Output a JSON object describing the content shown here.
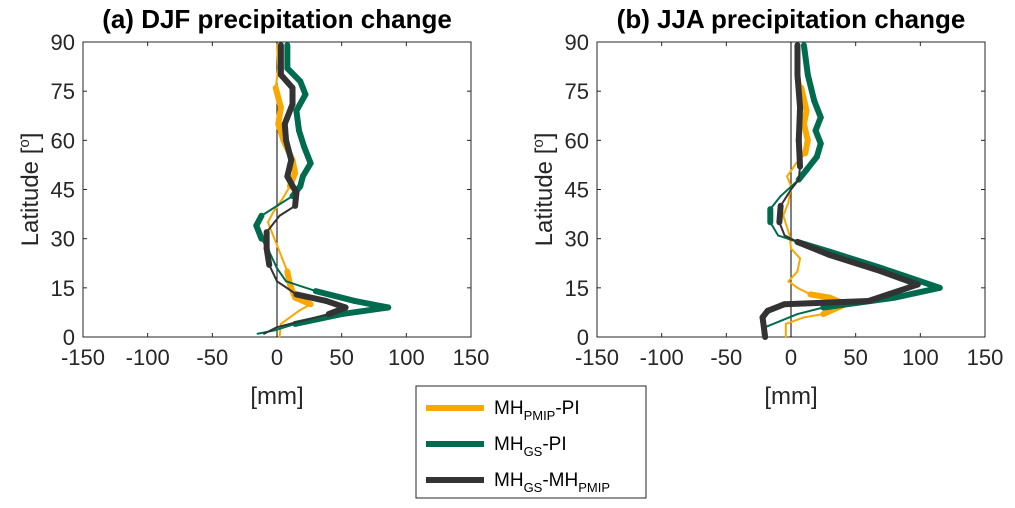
{
  "chart_data": [
    {
      "type": "line",
      "panel": "a",
      "title": "(a) DJF precipitation change",
      "xlabel": "[mm]",
      "ylabel": "Latitude [°]",
      "xlim": [
        -150,
        150
      ],
      "ylim": [
        0,
        90
      ],
      "xticks": [
        -150,
        -100,
        -50,
        0,
        50,
        100,
        150
      ],
      "yticks": [
        0,
        15,
        30,
        45,
        60,
        75,
        90
      ],
      "grid": false,
      "zero_line": true,
      "series": [
        {
          "name": "MH_PMIP-PI",
          "color": "#F8A800",
          "points": [
            [
              0,
              89
            ],
            [
              1,
              82
            ],
            [
              -1,
              76
            ],
            [
              3,
              70
            ],
            [
              1,
              65
            ],
            [
              5,
              60
            ],
            [
              12,
              54
            ],
            [
              14,
              50
            ],
            [
              10,
              46
            ],
            [
              4,
              42
            ],
            [
              -3,
              38
            ],
            [
              -7,
              35
            ],
            [
              -4,
              32
            ],
            [
              0,
              28
            ],
            [
              4,
              24
            ],
            [
              8,
              20
            ],
            [
              10,
              16
            ],
            [
              14,
              12
            ],
            [
              26,
              10
            ],
            [
              17,
              8
            ],
            [
              3,
              4
            ],
            [
              2,
              0
            ]
          ],
          "emphasized": [
            [
              0,
              0,
              1,
              1,
              1,
              1,
              1,
              1,
              1,
              0,
              0,
              0,
              0,
              0,
              0,
              1,
              1,
              1,
              1,
              0,
              0,
              0
            ]
          ]
        },
        {
          "name": "MH_GS-PI",
          "color": "#006B4E",
          "points": [
            [
              8,
              89
            ],
            [
              8,
              82
            ],
            [
              18,
              78
            ],
            [
              22,
              74
            ],
            [
              15,
              69
            ],
            [
              17,
              63
            ],
            [
              21,
              58
            ],
            [
              26,
              53
            ],
            [
              20,
              49
            ],
            [
              18,
              46
            ],
            [
              12,
              43
            ],
            [
              0,
              40
            ],
            [
              -12,
              37
            ],
            [
              -16,
              34
            ],
            [
              -12,
              30
            ],
            [
              -6,
              26
            ],
            [
              0,
              21
            ],
            [
              7,
              17
            ],
            [
              30,
              14
            ],
            [
              60,
              11
            ],
            [
              86,
              9
            ],
            [
              50,
              7
            ],
            [
              14,
              4
            ],
            [
              -2,
              2
            ],
            [
              -15,
              1
            ]
          ],
          "emphasized": [
            [
              1,
              1,
              1,
              1,
              1,
              1,
              1,
              1,
              1,
              1,
              1,
              0,
              1,
              1,
              1,
              0,
              0,
              0,
              1,
              1,
              1,
              1,
              1,
              0,
              1
            ]
          ]
        },
        {
          "name": "MH_GS-MH_PMIP",
          "color": "#333333",
          "points": [
            [
              3,
              89
            ],
            [
              3,
              80
            ],
            [
              12,
              76
            ],
            [
              12,
              71
            ],
            [
              6,
              65
            ],
            [
              7,
              60
            ],
            [
              11,
              54
            ],
            [
              8,
              49
            ],
            [
              15,
              44
            ],
            [
              14,
              40
            ],
            [
              2,
              37
            ],
            [
              -8,
              32
            ],
            [
              -8,
              27
            ],
            [
              -6,
              22
            ],
            [
              0,
              17
            ],
            [
              15,
              13
            ],
            [
              38,
              11
            ],
            [
              53,
              9
            ],
            [
              40,
              7
            ],
            [
              20,
              5
            ],
            [
              0,
              3
            ],
            [
              -10,
              1
            ]
          ],
          "emphasized": [
            [
              1,
              1,
              1,
              1,
              1,
              1,
              1,
              1,
              1,
              1,
              0,
              1,
              1,
              1,
              0,
              1,
              1,
              1,
              1,
              0,
              0,
              0
            ]
          ]
        }
      ]
    },
    {
      "type": "line",
      "panel": "b",
      "title": "(b) JJA precipitation change",
      "xlabel": "[mm]",
      "ylabel": "Latitude [°]",
      "xlim": [
        -150,
        150
      ],
      "ylim": [
        0,
        90
      ],
      "xticks": [
        -150,
        -100,
        -50,
        0,
        50,
        100,
        150
      ],
      "yticks": [
        0,
        15,
        30,
        45,
        60,
        75,
        90
      ],
      "grid": false,
      "zero_line": true,
      "series": [
        {
          "name": "MH_PMIP-PI",
          "color": "#F8A800",
          "points": [
            [
              6,
              89
            ],
            [
              5,
              83
            ],
            [
              8,
              76
            ],
            [
              12,
              69
            ],
            [
              10,
              65
            ],
            [
              13,
              60
            ],
            [
              11,
              56
            ],
            [
              4,
              53
            ],
            [
              -3,
              49
            ],
            [
              0,
              46
            ],
            [
              -2,
              41
            ],
            [
              -6,
              37
            ],
            [
              -1,
              31
            ],
            [
              0,
              27
            ],
            [
              7,
              24
            ],
            [
              5,
              20
            ],
            [
              -2,
              17
            ],
            [
              5,
              15
            ],
            [
              15,
              13
            ],
            [
              30,
              12
            ],
            [
              42,
              10
            ],
            [
              25,
              7
            ],
            [
              10,
              6
            ],
            [
              -4,
              4
            ],
            [
              -4,
              0
            ]
          ],
          "emphasized": [
            [
              0,
              0,
              1,
              1,
              1,
              1,
              1,
              0,
              0,
              0,
              0,
              0,
              0,
              0,
              1,
              0,
              0,
              0,
              1,
              1,
              1,
              1,
              0,
              0,
              0
            ]
          ]
        },
        {
          "name": "MH_GS-PI",
          "color": "#006B4E",
          "points": [
            [
              10,
              89
            ],
            [
              13,
              80
            ],
            [
              18,
              72
            ],
            [
              23,
              67
            ],
            [
              19,
              63
            ],
            [
              23,
              59
            ],
            [
              20,
              55
            ],
            [
              12,
              51
            ],
            [
              6,
              48
            ],
            [
              -8,
              43
            ],
            [
              -16,
              39
            ],
            [
              -16,
              35
            ],
            [
              -10,
              31
            ],
            [
              5,
              29
            ],
            [
              30,
              26
            ],
            [
              70,
              21
            ],
            [
              115,
              15
            ],
            [
              80,
              12
            ],
            [
              25,
              9
            ],
            [
              5,
              7
            ],
            [
              -20,
              3
            ],
            [
              -22,
              1
            ]
          ],
          "emphasized": [
            [
              1,
              1,
              1,
              1,
              1,
              1,
              1,
              1,
              1,
              0,
              1,
              1,
              0,
              1,
              1,
              1,
              1,
              1,
              1,
              0,
              0,
              1
            ]
          ]
        },
        {
          "name": "MH_GS-MH_PMIP",
          "color": "#333333",
          "points": [
            [
              5,
              89
            ],
            [
              5,
              80
            ],
            [
              7,
              70
            ],
            [
              6,
              60
            ],
            [
              7,
              52
            ],
            [
              6,
              48
            ],
            [
              0,
              45
            ],
            [
              -8,
              40
            ],
            [
              -9,
              35
            ],
            [
              -5,
              31
            ],
            [
              5,
              29
            ],
            [
              30,
              25
            ],
            [
              70,
              20
            ],
            [
              98,
              16
            ],
            [
              60,
              11
            ],
            [
              -5,
              10
            ],
            [
              -18,
              8
            ],
            [
              -22,
              6
            ],
            [
              -20,
              0
            ]
          ],
          "emphasized": [
            [
              1,
              1,
              1,
              1,
              1,
              0,
              0,
              1,
              1,
              0,
              1,
              1,
              1,
              1,
              1,
              1,
              1,
              1,
              1
            ]
          ]
        }
      ]
    }
  ],
  "line_width_note": "Each curve alternates between thick and thin segments. The meaning of the thick/thin distinction is not stated in the visible figure or its legend; it is recorded neutrally as 'emphasized' and should not be read as statistical significance without the original caption.",
  "legend": {
    "position": "bottom-center",
    "entries": [
      {
        "base": "MH",
        "sub1": "PMIP",
        "mid": "-PI",
        "sub2": "",
        "color": "#F8A800"
      },
      {
        "base": "MH",
        "sub1": "GS",
        "mid": "-PI",
        "sub2": "",
        "color": "#006B4E"
      },
      {
        "base": "MH",
        "sub1": "GS",
        "mid": "-MH",
        "sub2": "PMIP",
        "color": "#333333"
      }
    ]
  },
  "labels": {
    "panel_a_title": "(a) DJF precipitation change",
    "panel_b_title": "(b) JJA precipitation change",
    "xlabel": "[mm]",
    "ylabel_text": "Latitude [",
    "ylabel_degree": "o",
    "ylabel_close": "]"
  }
}
